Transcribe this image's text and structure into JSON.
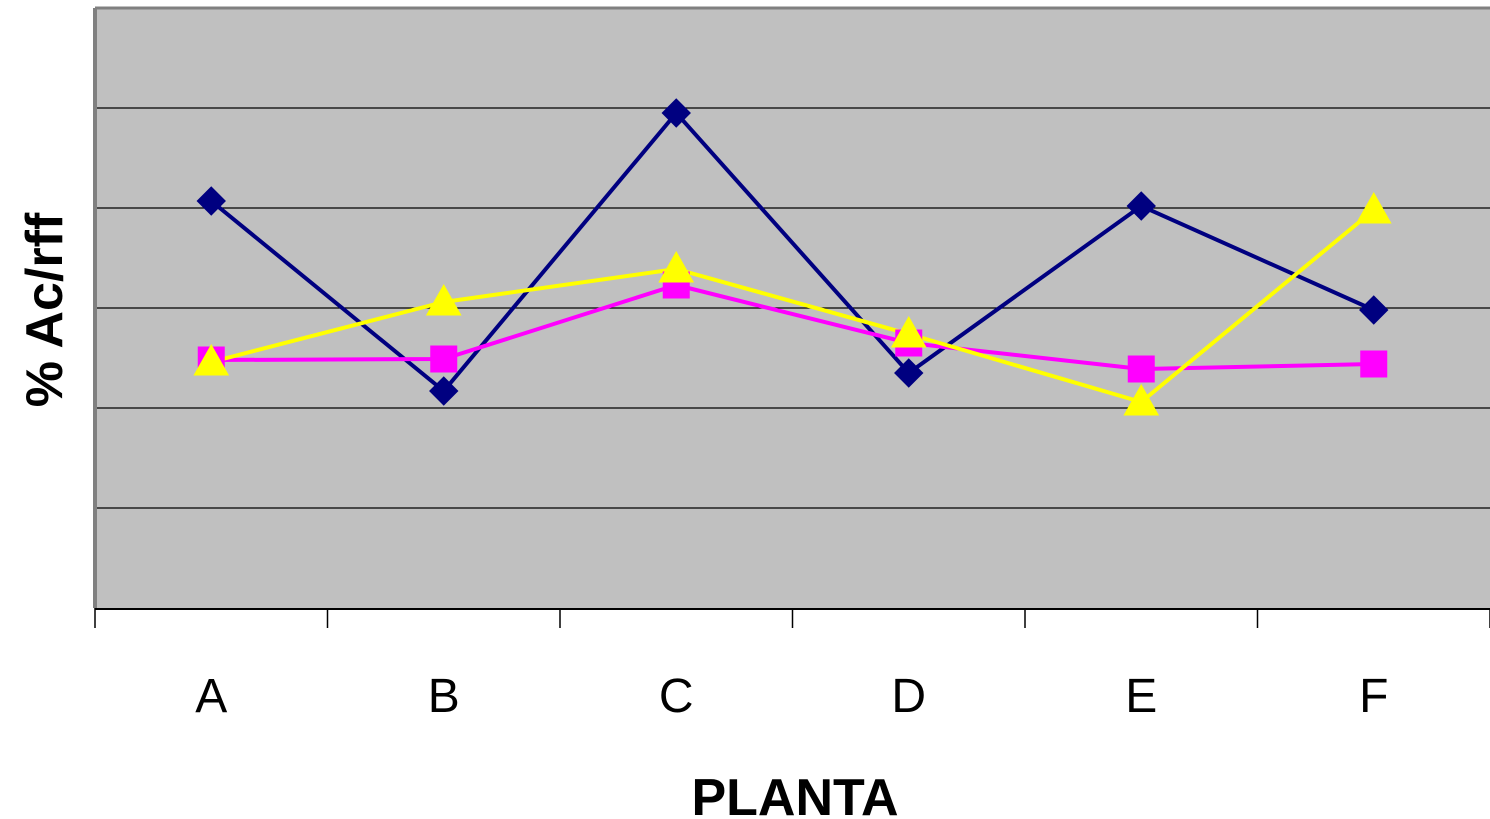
{
  "chart_data": {
    "type": "line",
    "title": "",
    "xlabel": "PLANTA",
    "ylabel": "% Ac/rff",
    "categories": [
      "A",
      "B",
      "C",
      "D",
      "E",
      "F"
    ],
    "ylim": [
      0,
      6
    ],
    "grid": true,
    "y_tick_labels_shown": false,
    "series": [
      {
        "color": "#000080",
        "marker": "diamond",
        "values": [
          4.07,
          2.17,
          4.95,
          2.35,
          4.02,
          2.98
        ]
      },
      {
        "color": "#ff00ff",
        "marker": "square",
        "values": [
          2.48,
          2.49,
          3.23,
          2.65,
          2.39,
          2.44
        ]
      },
      {
        "color": "#ffff00",
        "marker": "triangle",
        "values": [
          2.46,
          3.06,
          3.39,
          2.74,
          2.06,
          3.98
        ]
      }
    ],
    "colors": {
      "plot_background": "#c0c0c0",
      "gridline": "#000000",
      "border": "#808080"
    }
  }
}
